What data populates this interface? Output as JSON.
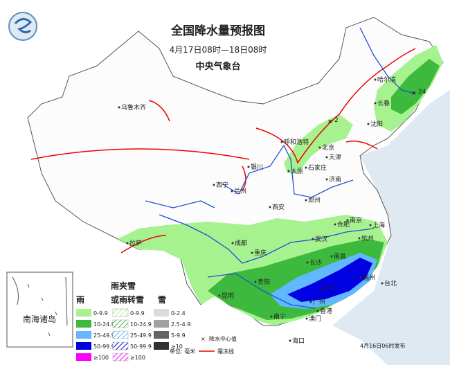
{
  "header": {
    "title": "全国降水量预报图",
    "period": "4月17日08时—18日08时",
    "issuer": "中央气象台"
  },
  "cities": [
    "乌鲁木齐",
    "哈尔滨",
    "长春",
    "沈阳",
    "呼和浩特",
    "北京",
    "天津",
    "石家庄",
    "太原",
    "济南",
    "银川",
    "兰州",
    "西宁",
    "西安",
    "郑州",
    "合肥",
    "南京",
    "上海",
    "杭州",
    "武汉",
    "成都",
    "重庆",
    "长沙",
    "南昌",
    "贵阳",
    "福州",
    "台北",
    "昆明",
    "南宁",
    "广州",
    "香港",
    "澳门",
    "海口",
    "拉萨"
  ],
  "max_values": [
    24,
    2,
    80
  ],
  "inset_label": "南海诸岛",
  "legend": {
    "rain_header": "雨",
    "mix_header_1": "雨夹雪",
    "mix_header_2": "或雨转雪",
    "snow_header": "雪",
    "rain_rows": [
      "0-9.9",
      "10-24.9",
      "25-49.9",
      "50-99.9",
      "≥100"
    ],
    "mix_rows": [
      "0-9.9",
      "10-24.9",
      "25-49.9",
      "50-99.9",
      "≥100"
    ],
    "snow_rows": [
      "0-2.4",
      "2.5-4.9",
      "5-9.9",
      "≥10"
    ],
    "max_label": "降水中心值",
    "unit": "单位: 毫米",
    "frost_label": "霜冻线"
  },
  "issued": "4月16日06时发布"
}
